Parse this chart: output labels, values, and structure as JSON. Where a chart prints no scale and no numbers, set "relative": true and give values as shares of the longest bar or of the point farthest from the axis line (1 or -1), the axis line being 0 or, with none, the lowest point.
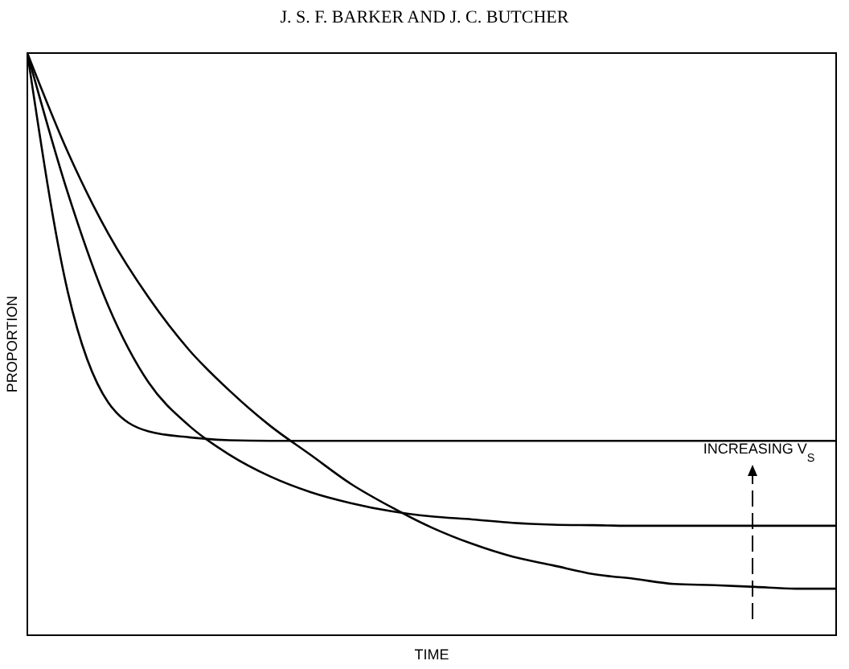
{
  "chart_data": {
    "type": "line",
    "relative": true,
    "xlabel": "TIME",
    "ylabel": "PROPORTION",
    "annotations": [
      "J. S. F. BARKER AND J. C. BUTCHER",
      "INCREASING V$_{S}$"
    ],
    "categories": [
      null,
      null,
      null,
      null,
      null,
      null,
      null,
      null,
      null,
      null,
      null,
      null,
      null,
      null,
      null,
      null,
      null,
      null,
      null,
      null,
      null
    ],
    "series": [
      {
        "color": "#000000",
        "values": [
          1,
          0.59,
          0.4,
          0.35,
          0.34,
          0.335,
          0.334,
          0.334,
          0.334,
          0.334,
          0.334,
          0.334,
          0.334,
          0.334,
          0.334,
          0.334,
          0.334,
          0.334,
          0.334,
          0.334,
          0.334
        ]
      },
      {
        "color": "#000000",
        "values": [
          1,
          0.76,
          0.566,
          0.434,
          0.36,
          0.31,
          0.273,
          0.246,
          0.227,
          0.213,
          0.204,
          0.199,
          0.193,
          0.19,
          0.189,
          0.188,
          0.188,
          0.188,
          0.188,
          0.188,
          0.188
        ]
      },
      {
        "color": "#000000",
        "values": [
          1,
          0.83,
          0.69,
          0.58,
          0.49,
          0.42,
          0.36,
          0.31,
          0.26,
          0.22,
          0.185,
          0.157,
          0.135,
          0.12,
          0.105,
          0.097,
          0.088,
          0.086,
          0.083,
          0.08,
          0.08
        ]
      }
    ],
    "grid": false,
    "legend": false,
    "marker": "none",
    "line_style": "solid"
  }
}
